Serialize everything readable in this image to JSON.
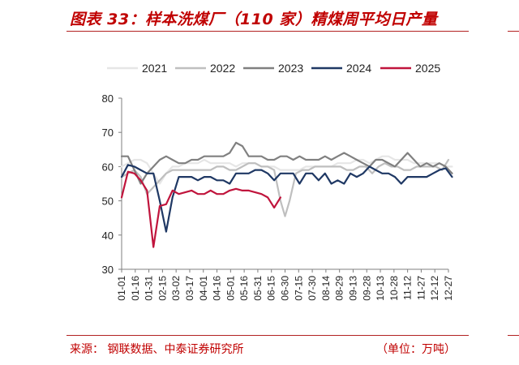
{
  "header": {
    "title": "图表 33：样本洗煤厂（110 家）精煤周平均日产量"
  },
  "footer": {
    "source": "来源：   钢联数据、中泰证券研究所",
    "unit": "（单位：万吨）"
  },
  "chart_data": {
    "type": "line",
    "title": "",
    "xlabel": "",
    "ylabel": "",
    "ylim": [
      30,
      80
    ],
    "yticks": [
      "30",
      "40",
      "50",
      "60",
      "70",
      "80"
    ],
    "xtick_labels": [
      "01-01",
      "01-16",
      "01-31",
      "02-15",
      "03-02",
      "03-17",
      "04-01",
      "04-16",
      "05-01",
      "05-16",
      "05-31",
      "06-15",
      "06-30",
      "07-15",
      "07-30",
      "08-14",
      "08-29",
      "09-13",
      "09-28",
      "10-13",
      "10-28",
      "11-12",
      "11-27",
      "12-12",
      "12-27"
    ],
    "grid": false,
    "legend_position": "top",
    "series": [
      {
        "name": "2021",
        "color": "#e6e6e6",
        "points": [
          [
            "01-01",
            60
          ],
          [
            "01-08",
            61
          ],
          [
            "01-15",
            62
          ],
          [
            "01-22",
            62
          ],
          [
            "01-29",
            61
          ],
          [
            "02-05",
            58
          ],
          [
            "02-12",
            55
          ],
          [
            "02-19",
            58
          ],
          [
            "02-26",
            60
          ],
          [
            "03-05",
            60
          ],
          [
            "03-12",
            61
          ],
          [
            "03-19",
            61
          ],
          [
            "03-26",
            61
          ],
          [
            "04-02",
            62
          ],
          [
            "04-09",
            61
          ],
          [
            "04-16",
            61
          ],
          [
            "04-23",
            61
          ],
          [
            "04-30",
            61
          ],
          [
            "05-07",
            60
          ],
          [
            "05-14",
            61
          ],
          [
            "05-21",
            61
          ],
          [
            "05-28",
            61
          ],
          [
            "06-04",
            60
          ],
          [
            "06-11",
            60
          ],
          [
            "06-18",
            60
          ],
          [
            "06-25",
            59
          ],
          [
            "07-02",
            59
          ],
          [
            "07-09",
            59
          ],
          [
            "07-16",
            59
          ],
          [
            "07-23",
            60
          ],
          [
            "07-30",
            60
          ],
          [
            "08-06",
            60
          ],
          [
            "08-13",
            60
          ],
          [
            "08-20",
            60
          ],
          [
            "08-27",
            61
          ],
          [
            "09-03",
            61
          ],
          [
            "09-10",
            61
          ],
          [
            "09-17",
            62
          ],
          [
            "09-24",
            62
          ],
          [
            "10-01",
            61
          ],
          [
            "10-08",
            62
          ],
          [
            "10-15",
            63
          ],
          [
            "10-22",
            63
          ],
          [
            "10-29",
            62
          ],
          [
            "11-05",
            62
          ],
          [
            "11-12",
            62
          ],
          [
            "11-19",
            61
          ],
          [
            "11-26",
            61
          ],
          [
            "12-03",
            61
          ],
          [
            "12-10",
            61
          ],
          [
            "12-17",
            61
          ],
          [
            "12-24",
            60
          ],
          [
            "12-31",
            60
          ]
        ]
      },
      {
        "name": "2022",
        "color": "#bfbfbf",
        "points": [
          [
            "01-01",
            57
          ],
          [
            "01-08",
            58
          ],
          [
            "01-15",
            59
          ],
          [
            "01-22",
            57
          ],
          [
            "01-29",
            52
          ],
          [
            "02-05",
            54
          ],
          [
            "02-12",
            56
          ],
          [
            "02-19",
            58
          ],
          [
            "02-26",
            59
          ],
          [
            "03-05",
            59
          ],
          [
            "03-12",
            59
          ],
          [
            "03-19",
            59
          ],
          [
            "03-26",
            59
          ],
          [
            "04-02",
            59
          ],
          [
            "04-09",
            59
          ],
          [
            "04-16",
            60
          ],
          [
            "04-23",
            60
          ],
          [
            "04-30",
            59
          ],
          [
            "05-07",
            59
          ],
          [
            "05-14",
            60
          ],
          [
            "05-21",
            61
          ],
          [
            "05-28",
            61
          ],
          [
            "06-04",
            60
          ],
          [
            "06-11",
            60
          ],
          [
            "06-18",
            59
          ],
          [
            "06-25",
            50
          ],
          [
            "06-30",
            45.5
          ],
          [
            "07-05",
            50
          ],
          [
            "07-12",
            58
          ],
          [
            "07-19",
            59
          ],
          [
            "07-26",
            59
          ],
          [
            "08-02",
            60
          ],
          [
            "08-09",
            60
          ],
          [
            "08-16",
            60
          ],
          [
            "08-23",
            60
          ],
          [
            "08-30",
            60
          ],
          [
            "09-06",
            59
          ],
          [
            "09-13",
            59
          ],
          [
            "09-20",
            60
          ],
          [
            "09-27",
            60
          ],
          [
            "10-04",
            58
          ],
          [
            "10-11",
            60
          ],
          [
            "10-18",
            61
          ],
          [
            "10-25",
            60
          ],
          [
            "11-01",
            60
          ],
          [
            "11-08",
            59
          ],
          [
            "11-15",
            59
          ],
          [
            "11-22",
            60
          ],
          [
            "11-29",
            60
          ],
          [
            "12-06",
            60
          ],
          [
            "12-13",
            60
          ],
          [
            "12-20",
            59
          ],
          [
            "12-27",
            62
          ]
        ]
      },
      {
        "name": "2023",
        "color": "#808080",
        "points": [
          [
            "01-01",
            63
          ],
          [
            "01-08",
            63
          ],
          [
            "01-15",
            59
          ],
          [
            "01-22",
            55
          ],
          [
            "01-29",
            58
          ],
          [
            "02-05",
            60
          ],
          [
            "02-12",
            62
          ],
          [
            "02-19",
            63
          ],
          [
            "02-26",
            62
          ],
          [
            "03-05",
            61
          ],
          [
            "03-12",
            61
          ],
          [
            "03-19",
            62
          ],
          [
            "03-26",
            62
          ],
          [
            "04-02",
            63
          ],
          [
            "04-09",
            63
          ],
          [
            "04-16",
            63
          ],
          [
            "04-23",
            63
          ],
          [
            "04-30",
            64
          ],
          [
            "05-07",
            67
          ],
          [
            "05-14",
            66
          ],
          [
            "05-21",
            63
          ],
          [
            "05-28",
            63
          ],
          [
            "06-04",
            63
          ],
          [
            "06-11",
            62
          ],
          [
            "06-18",
            62
          ],
          [
            "06-25",
            63
          ],
          [
            "07-02",
            63
          ],
          [
            "07-09",
            62
          ],
          [
            "07-16",
            63
          ],
          [
            "07-23",
            62
          ],
          [
            "07-30",
            62
          ],
          [
            "08-06",
            62
          ],
          [
            "08-13",
            63
          ],
          [
            "08-20",
            62
          ],
          [
            "08-27",
            63
          ],
          [
            "09-03",
            64
          ],
          [
            "09-10",
            63
          ],
          [
            "09-17",
            62
          ],
          [
            "09-24",
            61
          ],
          [
            "10-01",
            60
          ],
          [
            "10-08",
            62
          ],
          [
            "10-15",
            62
          ],
          [
            "10-22",
            61
          ],
          [
            "10-29",
            60
          ],
          [
            "11-05",
            62
          ],
          [
            "11-12",
            64
          ],
          [
            "11-19",
            62
          ],
          [
            "11-26",
            60
          ],
          [
            "12-03",
            61
          ],
          [
            "12-10",
            60
          ],
          [
            "12-17",
            61
          ],
          [
            "12-24",
            60
          ],
          [
            "12-31",
            58
          ]
        ]
      },
      {
        "name": "2024",
        "color": "#1f3864",
        "points": [
          [
            "01-01",
            57
          ],
          [
            "01-08",
            60.5
          ],
          [
            "01-15",
            60
          ],
          [
            "01-22",
            59
          ],
          [
            "01-29",
            58
          ],
          [
            "02-05",
            58
          ],
          [
            "02-12",
            50
          ],
          [
            "02-19",
            41
          ],
          [
            "02-26",
            51
          ],
          [
            "03-05",
            57
          ],
          [
            "03-12",
            57
          ],
          [
            "03-19",
            57
          ],
          [
            "03-26",
            56
          ],
          [
            "04-02",
            57
          ],
          [
            "04-09",
            57
          ],
          [
            "04-16",
            56
          ],
          [
            "04-23",
            56
          ],
          [
            "04-30",
            55
          ],
          [
            "05-07",
            58
          ],
          [
            "05-14",
            58
          ],
          [
            "05-21",
            58
          ],
          [
            "05-28",
            59
          ],
          [
            "06-04",
            59
          ],
          [
            "06-11",
            58
          ],
          [
            "06-18",
            56
          ],
          [
            "06-25",
            58
          ],
          [
            "07-02",
            58
          ],
          [
            "07-09",
            58
          ],
          [
            "07-16",
            55
          ],
          [
            "07-23",
            58
          ],
          [
            "07-30",
            58
          ],
          [
            "08-06",
            56
          ],
          [
            "08-13",
            58
          ],
          [
            "08-20",
            55
          ],
          [
            "08-27",
            56
          ],
          [
            "09-03",
            55
          ],
          [
            "09-10",
            58
          ],
          [
            "09-17",
            57
          ],
          [
            "09-24",
            58
          ],
          [
            "10-01",
            60
          ],
          [
            "10-08",
            59
          ],
          [
            "10-15",
            58
          ],
          [
            "10-22",
            58
          ],
          [
            "10-29",
            57
          ],
          [
            "11-05",
            55
          ],
          [
            "11-12",
            57
          ],
          [
            "11-19",
            57
          ],
          [
            "11-26",
            57
          ],
          [
            "12-03",
            57
          ],
          [
            "12-10",
            58
          ],
          [
            "12-17",
            59
          ],
          [
            "12-24",
            59.5
          ],
          [
            "12-31",
            57
          ]
        ]
      },
      {
        "name": "2025",
        "color": "#c0143c",
        "points": [
          [
            "01-01",
            51
          ],
          [
            "01-08",
            58.5
          ],
          [
            "01-15",
            58
          ],
          [
            "01-22",
            56
          ],
          [
            "01-29",
            53
          ],
          [
            "02-05",
            36.5
          ],
          [
            "02-12",
            48.5
          ],
          [
            "02-19",
            49
          ],
          [
            "02-26",
            53
          ],
          [
            "03-05",
            52
          ],
          [
            "03-12",
            52.5
          ],
          [
            "03-19",
            53
          ],
          [
            "03-26",
            52
          ],
          [
            "04-02",
            52
          ],
          [
            "04-09",
            53
          ],
          [
            "04-16",
            52
          ],
          [
            "04-23",
            52
          ],
          [
            "04-30",
            53
          ],
          [
            "05-07",
            53.5
          ],
          [
            "05-14",
            53
          ],
          [
            "05-21",
            53
          ],
          [
            "05-28",
            52.5
          ],
          [
            "06-04",
            52
          ],
          [
            "06-11",
            51
          ],
          [
            "06-18",
            48
          ],
          [
            "06-25",
            51
          ]
        ]
      }
    ]
  }
}
